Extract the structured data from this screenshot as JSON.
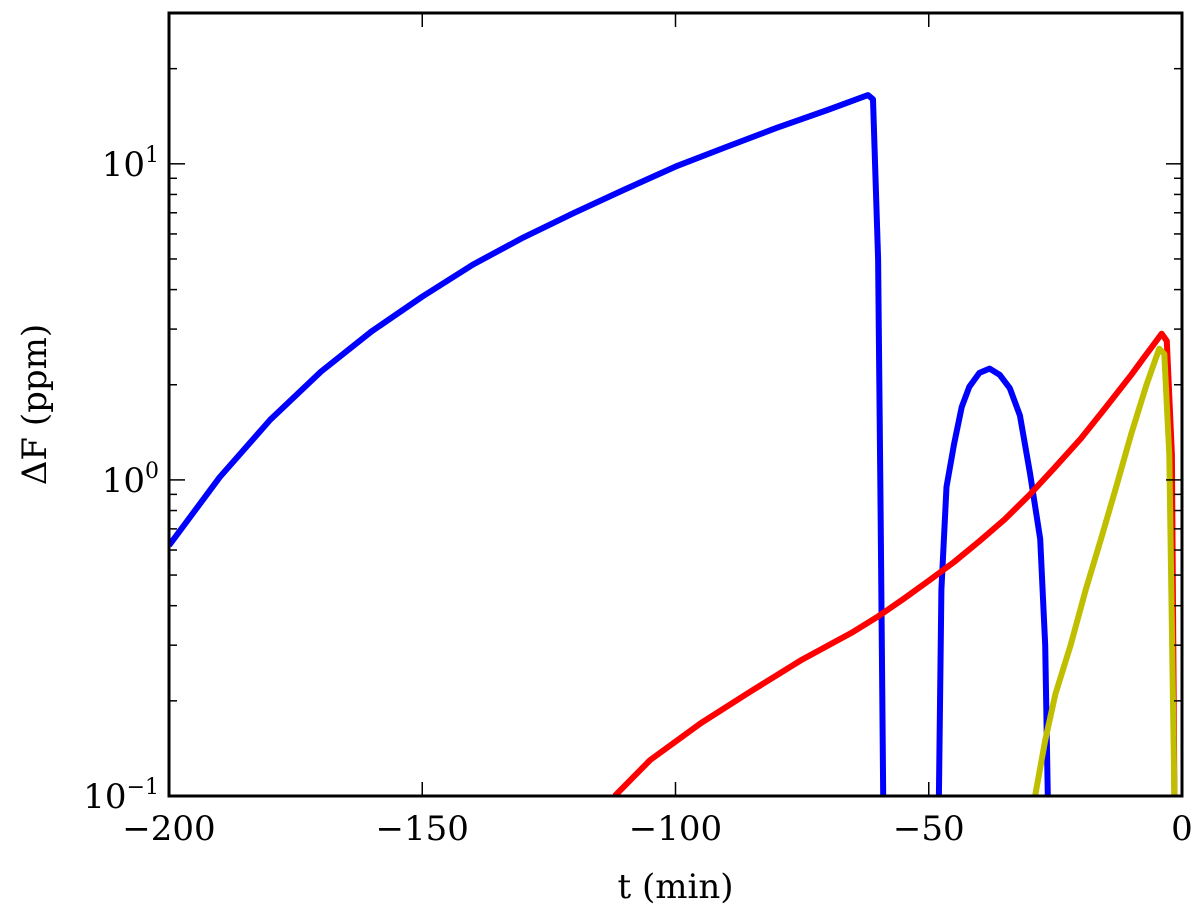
{
  "chart_data": {
    "type": "line",
    "title": "",
    "xlabel": "t (min)",
    "ylabel": "ΔF (ppm)",
    "xlim": [
      -200,
      0
    ],
    "ylim": [
      0.1,
      30
    ],
    "yscale": "log",
    "grid": false,
    "legend": "none",
    "x_ticks": [
      {
        "value": -200,
        "label": "−200"
      },
      {
        "value": -150,
        "label": "−150"
      },
      {
        "value": -100,
        "label": "−100"
      },
      {
        "value": -50,
        "label": "−50"
      },
      {
        "value": 0,
        "label": "0"
      }
    ],
    "y_ticks": [
      {
        "value": 0.1,
        "base": "10",
        "exp": "−1"
      },
      {
        "value": 1,
        "base": "10",
        "exp": "0"
      },
      {
        "value": 10,
        "base": "10",
        "exp": "1"
      }
    ],
    "series": [
      {
        "color": "#0000ff",
        "segments": [
          [
            [
              -200,
              0.62
            ],
            [
              -190,
              1.02
            ],
            [
              -180,
              1.55
            ],
            [
              -170,
              2.2
            ],
            [
              -160,
              2.95
            ],
            [
              -150,
              3.8
            ],
            [
              -140,
              4.8
            ],
            [
              -130,
              5.85
            ],
            [
              -120,
              7.0
            ],
            [
              -110,
              8.3
            ],
            [
              -100,
              9.8
            ],
            [
              -90,
              11.3
            ],
            [
              -80,
              13.0
            ],
            [
              -70,
              14.8
            ],
            [
              -62,
              16.5
            ],
            [
              -61,
              16.0
            ],
            [
              -60,
              5.0
            ],
            [
              -59.5,
              0.8
            ],
            [
              -59,
              0.1
            ]
          ],
          [
            [
              -48,
              0.1
            ],
            [
              -47.5,
              0.45
            ],
            [
              -46.5,
              0.95
            ],
            [
              -45,
              1.3
            ],
            [
              -43.5,
              1.7
            ],
            [
              -42,
              1.97
            ],
            [
              -40,
              2.18
            ],
            [
              -38,
              2.25
            ],
            [
              -36,
              2.15
            ],
            [
              -34,
              1.95
            ],
            [
              -32,
              1.6
            ],
            [
              -30,
              1.05
            ],
            [
              -28,
              0.65
            ],
            [
              -27,
              0.3
            ],
            [
              -26.5,
              0.1
            ]
          ]
        ]
      },
      {
        "color": "#ff0000",
        "segments": [
          [
            [
              -112,
              0.1
            ],
            [
              -105,
              0.13
            ],
            [
              -95,
              0.17
            ],
            [
              -85,
              0.215
            ],
            [
              -75,
              0.27
            ],
            [
              -65,
              0.33
            ],
            [
              -60,
              0.37
            ],
            [
              -55,
              0.42
            ],
            [
              -50,
              0.48
            ],
            [
              -45,
              0.55
            ],
            [
              -40,
              0.64
            ],
            [
              -35,
              0.75
            ],
            [
              -30,
              0.9
            ],
            [
              -25,
              1.1
            ],
            [
              -20,
              1.35
            ],
            [
              -15,
              1.7
            ],
            [
              -10,
              2.15
            ],
            [
              -7,
              2.5
            ],
            [
              -4,
              2.9
            ],
            [
              -3,
              2.75
            ],
            [
              -2,
              1.2
            ],
            [
              -1.5,
              0.1
            ]
          ]
        ]
      },
      {
        "color": "#bfbf00",
        "segments": [
          [
            [
              -29,
              0.1
            ],
            [
              -27,
              0.15
            ],
            [
              -25,
              0.21
            ],
            [
              -22,
              0.3
            ],
            [
              -19,
              0.45
            ],
            [
              -16,
              0.65
            ],
            [
              -13,
              0.95
            ],
            [
              -10,
              1.4
            ],
            [
              -7,
              2.0
            ],
            [
              -4.5,
              2.6
            ],
            [
              -3.5,
              2.5
            ],
            [
              -2.5,
              1.2
            ],
            [
              -1.5,
              0.1
            ]
          ]
        ]
      }
    ]
  }
}
